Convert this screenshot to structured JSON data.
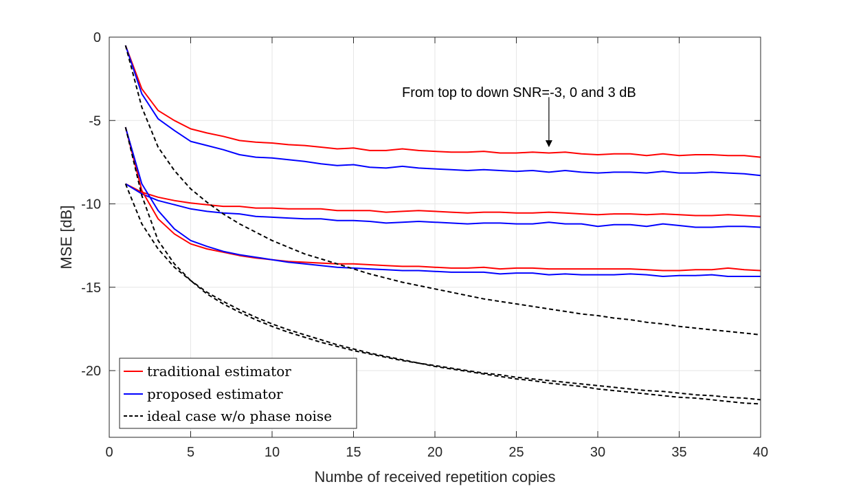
{
  "chart_data": {
    "type": "line",
    "xlabel": "Numbe of received repetition copies",
    "ylabel": "MSE [dB]",
    "xlim": [
      0,
      40
    ],
    "ylim": [
      -24,
      0
    ],
    "xticks": [
      0,
      5,
      10,
      15,
      20,
      25,
      30,
      35,
      40
    ],
    "yticks": [
      0,
      -5,
      -10,
      -15,
      -20
    ],
    "grid": true,
    "legend_position": "bottom-left",
    "legend": [
      {
        "label": "traditional estimator",
        "color": "#ff0000",
        "dash": "solid"
      },
      {
        "label": "proposed estimator",
        "color": "#0000ff",
        "dash": "solid"
      },
      {
        "label": "ideal case w/o phase noise",
        "color": "#000000",
        "dash": "dashed"
      }
    ],
    "annotation": {
      "text": "From top to down SNR=-3, 0 and 3 dB",
      "arrow_from": [
        27,
        -3.6
      ],
      "arrow_to": [
        27,
        -6.6
      ]
    },
    "x": [
      1,
      2,
      3,
      4,
      5,
      6,
      7,
      8,
      9,
      10,
      11,
      12,
      13,
      14,
      15,
      16,
      17,
      18,
      19,
      20,
      21,
      22,
      23,
      24,
      25,
      26,
      27,
      28,
      29,
      30,
      31,
      32,
      33,
      34,
      35,
      36,
      37,
      38,
      39,
      40
    ],
    "series": [
      {
        "name": "traditional estimator SNR=-3 dB",
        "color": "#ff0000",
        "dash": "solid",
        "values": [
          -0.5,
          -3.1,
          -4.4,
          -5.0,
          -5.5,
          -5.75,
          -5.95,
          -6.2,
          -6.3,
          -6.35,
          -6.45,
          -6.5,
          -6.6,
          -6.7,
          -6.65,
          -6.8,
          -6.8,
          -6.7,
          -6.8,
          -6.85,
          -6.9,
          -6.9,
          -6.85,
          -6.95,
          -6.95,
          -6.9,
          -6.95,
          -6.9,
          -7.0,
          -7.05,
          -7.0,
          -7.0,
          -7.1,
          -7.0,
          -7.1,
          -7.05,
          -7.05,
          -7.1,
          -7.1,
          -7.2
        ]
      },
      {
        "name": "proposed estimator SNR=-3 dB",
        "color": "#0000ff",
        "dash": "solid",
        "values": [
          -0.5,
          -3.4,
          -4.9,
          -5.6,
          -6.25,
          -6.5,
          -6.75,
          -7.05,
          -7.2,
          -7.25,
          -7.35,
          -7.45,
          -7.6,
          -7.7,
          -7.65,
          -7.8,
          -7.85,
          -7.75,
          -7.85,
          -7.9,
          -7.95,
          -8.0,
          -7.95,
          -8.0,
          -8.05,
          -8.0,
          -8.1,
          -8.0,
          -8.1,
          -8.15,
          -8.1,
          -8.1,
          -8.15,
          -8.05,
          -8.15,
          -8.15,
          -8.1,
          -8.15,
          -8.2,
          -8.3
        ]
      },
      {
        "name": "traditional estimator SNR=0 dB",
        "color": "#ff0000",
        "dash": "solid",
        "values": [
          -8.8,
          -9.3,
          -9.6,
          -9.8,
          -9.95,
          -10.05,
          -10.15,
          -10.15,
          -10.25,
          -10.25,
          -10.3,
          -10.3,
          -10.3,
          -10.4,
          -10.4,
          -10.4,
          -10.5,
          -10.45,
          -10.4,
          -10.45,
          -10.5,
          -10.55,
          -10.5,
          -10.5,
          -10.55,
          -10.55,
          -10.5,
          -10.55,
          -10.6,
          -10.65,
          -10.6,
          -10.6,
          -10.65,
          -10.6,
          -10.65,
          -10.7,
          -10.7,
          -10.65,
          -10.7,
          -10.75
        ]
      },
      {
        "name": "proposed estimator SNR=0 dB",
        "color": "#0000ff",
        "dash": "solid",
        "values": [
          -8.8,
          -9.4,
          -9.8,
          -10.05,
          -10.3,
          -10.45,
          -10.55,
          -10.6,
          -10.75,
          -10.8,
          -10.85,
          -10.9,
          -10.9,
          -11.0,
          -11.0,
          -11.05,
          -11.15,
          -11.1,
          -11.05,
          -11.1,
          -11.15,
          -11.2,
          -11.15,
          -11.15,
          -11.2,
          -11.2,
          -11.1,
          -11.2,
          -11.2,
          -11.35,
          -11.25,
          -11.25,
          -11.35,
          -11.2,
          -11.3,
          -11.4,
          -11.4,
          -11.35,
          -11.35,
          -11.4
        ]
      },
      {
        "name": "traditional estimator SNR=3 dB",
        "color": "#ff0000",
        "dash": "solid",
        "values": [
          -5.4,
          -9.2,
          -10.9,
          -11.8,
          -12.4,
          -12.7,
          -12.9,
          -13.1,
          -13.25,
          -13.35,
          -13.45,
          -13.5,
          -13.55,
          -13.6,
          -13.6,
          -13.65,
          -13.7,
          -13.75,
          -13.75,
          -13.8,
          -13.85,
          -13.85,
          -13.8,
          -13.9,
          -13.85,
          -13.85,
          -13.9,
          -13.9,
          -13.9,
          -13.9,
          -13.9,
          -13.9,
          -13.95,
          -14.0,
          -14.0,
          -13.95,
          -13.95,
          -13.85,
          -13.95,
          -14.0
        ]
      },
      {
        "name": "proposed estimator SNR=3 dB",
        "color": "#0000ff",
        "dash": "solid",
        "values": [
          -5.4,
          -8.8,
          -10.4,
          -11.5,
          -12.2,
          -12.55,
          -12.85,
          -13.05,
          -13.2,
          -13.35,
          -13.5,
          -13.6,
          -13.7,
          -13.8,
          -13.85,
          -13.9,
          -13.95,
          -14.0,
          -14.0,
          -14.05,
          -14.1,
          -14.1,
          -14.1,
          -14.2,
          -14.15,
          -14.15,
          -14.25,
          -14.2,
          -14.25,
          -14.25,
          -14.25,
          -14.2,
          -14.25,
          -14.35,
          -14.3,
          -14.3,
          -14.25,
          -14.35,
          -14.35,
          -14.35
        ]
      },
      {
        "name": "ideal case w/o phase noise SNR=-3 dB",
        "color": "#000000",
        "dash": "dashed",
        "values": [
          -0.5,
          -4.2,
          -6.6,
          -8.0,
          -9.1,
          -9.9,
          -10.6,
          -11.2,
          -11.7,
          -12.2,
          -12.6,
          -13.0,
          -13.3,
          -13.6,
          -13.9,
          -14.2,
          -14.45,
          -14.7,
          -14.9,
          -15.1,
          -15.3,
          -15.5,
          -15.7,
          -15.85,
          -16.0,
          -16.15,
          -16.3,
          -16.45,
          -16.6,
          -16.7,
          -16.85,
          -16.95,
          -17.1,
          -17.2,
          -17.35,
          -17.45,
          -17.55,
          -17.65,
          -17.75,
          -17.85
        ]
      },
      {
        "name": "ideal case w/o phase noise SNR=0 dB",
        "color": "#000000",
        "dash": "dashed",
        "values": [
          -5.4,
          -9.5,
          -12.2,
          -13.6,
          -14.6,
          -15.4,
          -16.0,
          -16.5,
          -16.95,
          -17.35,
          -17.7,
          -18.0,
          -18.3,
          -18.55,
          -18.8,
          -19.0,
          -19.2,
          -19.4,
          -19.55,
          -19.7,
          -19.85,
          -20.0,
          -20.15,
          -20.25,
          -20.4,
          -20.5,
          -20.6,
          -20.7,
          -20.8,
          -20.9,
          -21.0,
          -21.1,
          -21.2,
          -21.25,
          -21.35,
          -21.45,
          -21.5,
          -21.6,
          -21.65,
          -21.75
        ]
      },
      {
        "name": "ideal case w/o phase noise SNR=3 dB",
        "color": "#000000",
        "dash": "dashed",
        "values": [
          -8.8,
          -11.2,
          -12.7,
          -13.8,
          -14.6,
          -15.3,
          -15.85,
          -16.35,
          -16.8,
          -17.2,
          -17.55,
          -17.85,
          -18.15,
          -18.45,
          -18.7,
          -18.95,
          -19.15,
          -19.35,
          -19.55,
          -19.75,
          -19.9,
          -20.05,
          -20.2,
          -20.35,
          -20.5,
          -20.6,
          -20.75,
          -20.85,
          -20.95,
          -21.1,
          -21.2,
          -21.3,
          -21.4,
          -21.5,
          -21.6,
          -21.65,
          -21.75,
          -21.85,
          -21.95,
          -22.0
        ]
      }
    ]
  }
}
